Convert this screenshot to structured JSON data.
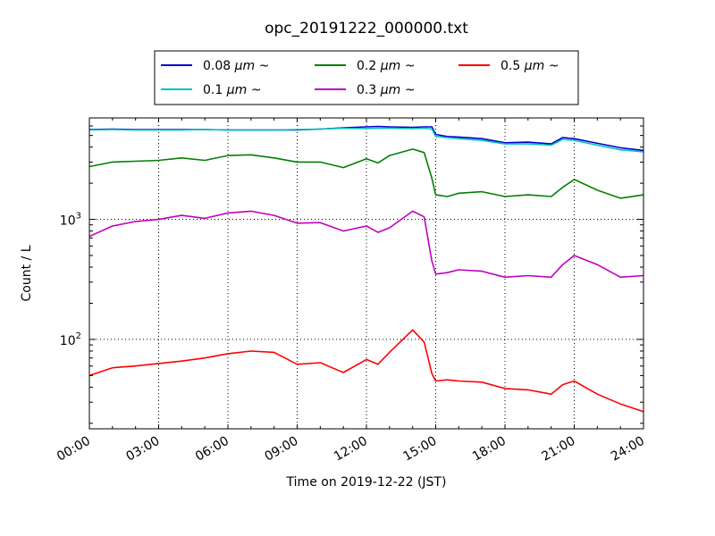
{
  "chart_data": {
    "type": "line",
    "title": "opc_20191222_000000.txt",
    "xlabel": "Time on 2019-12-22 (JST)",
    "ylabel": "Count / L",
    "y_scale": "log",
    "xlim": [
      "00:00",
      "24:00"
    ],
    "ylim": [
      18,
      7000
    ],
    "grid": true,
    "grid_style": "dotted",
    "legend_position": "top, above plot",
    "x_tick_labels": [
      "00:00",
      "03:00",
      "06:00",
      "09:00",
      "12:00",
      "15:00",
      "18:00",
      "21:00",
      "24:00"
    ],
    "y_tick_labels": [
      {
        "base": "10",
        "exp": "3",
        "value": 1000
      },
      {
        "base": "10",
        "exp": "2",
        "value": 100
      }
    ],
    "x": [
      "00:00",
      "01:00",
      "02:00",
      "03:00",
      "04:00",
      "05:00",
      "06:00",
      "07:00",
      "08:00",
      "09:00",
      "10:00",
      "11:00",
      "12:00",
      "12:30",
      "13:00",
      "14:00",
      "14:30",
      "14:50",
      "15:00",
      "15:30",
      "16:00",
      "17:00",
      "18:00",
      "19:00",
      "20:00",
      "20:30",
      "21:00",
      "22:00",
      "23:00",
      "24:00"
    ],
    "series": [
      {
        "name": "0.08 μm ~",
        "label_text": "0.08",
        "unit": "μm",
        "tilde": "~",
        "color": "#0000cc",
        "values": [
          5600,
          5650,
          5600,
          5600,
          5600,
          5600,
          5550,
          5550,
          5550,
          5550,
          5650,
          5800,
          5900,
          5950,
          5900,
          5850,
          5900,
          5900,
          5100,
          4900,
          4850,
          4700,
          4350,
          4400,
          4250,
          4800,
          4700,
          4300,
          3950,
          3750
        ]
      },
      {
        "name": "0.1 μm ~",
        "label_text": "0.1",
        "unit": "μm",
        "tilde": "~",
        "color": "#00bfbf",
        "values": [
          5550,
          5600,
          5550,
          5550,
          5550,
          5600,
          5550,
          5550,
          5550,
          5600,
          5650,
          5750,
          5700,
          5750,
          5750,
          5700,
          5750,
          5650,
          4900,
          4800,
          4700,
          4550,
          4250,
          4250,
          4150,
          4650,
          4550,
          4150,
          3800,
          3650
        ]
      },
      {
        "name": "0.2 μm ~",
        "label_text": "0.2",
        "unit": "μm",
        "tilde": "~",
        "color": "#008000",
        "values": [
          2750,
          3000,
          3050,
          3100,
          3250,
          3100,
          3400,
          3450,
          3250,
          3000,
          3000,
          2700,
          3200,
          2950,
          3400,
          3850,
          3600,
          2200,
          1600,
          1550,
          1650,
          1700,
          1550,
          1600,
          1550,
          1850,
          2150,
          1750,
          1500,
          1600
        ]
      },
      {
        "name": "0.3 μm ~",
        "label_text": "0.3",
        "unit": "μm",
        "tilde": "~",
        "color": "#bf00bf",
        "values": [
          720,
          880,
          960,
          1000,
          1080,
          1020,
          1130,
          1170,
          1080,
          930,
          940,
          800,
          880,
          780,
          850,
          1170,
          1050,
          450,
          350,
          360,
          380,
          370,
          330,
          340,
          330,
          420,
          500,
          420,
          330,
          340
        ]
      },
      {
        "name": "0.5 μm ~",
        "label_text": "0.5",
        "unit": "μm",
        "tilde": "~",
        "color": "#ff0000",
        "values": [
          50,
          58,
          60,
          63,
          66,
          70,
          76,
          80,
          78,
          62,
          64,
          53,
          68,
          62,
          78,
          120,
          95,
          52,
          45,
          46,
          45,
          44,
          39,
          38,
          35,
          42,
          45,
          35,
          29,
          25
        ]
      }
    ]
  }
}
